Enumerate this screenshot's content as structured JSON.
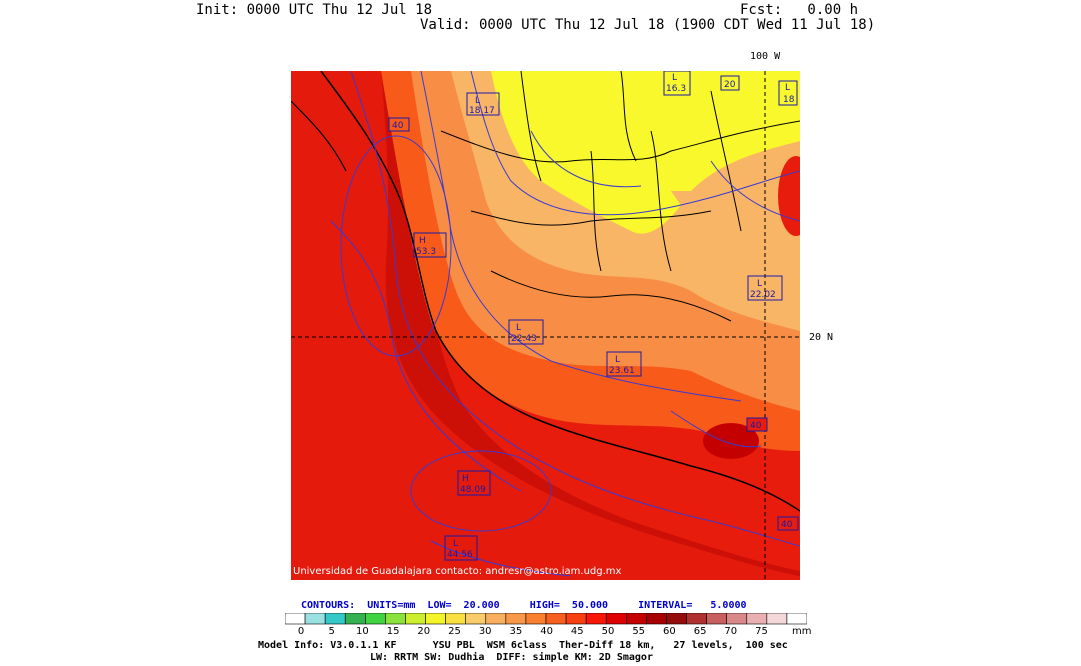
{
  "header": {
    "init": "Init: 0000 UTC Thu 12 Jul 18",
    "fcst": "Fcst:   0.00 h",
    "valid": "Valid: 0000 UTC Thu 12 Jul 18 (1900 CDT Wed 11 Jul 18)"
  },
  "map": {
    "lon_label": "100 W",
    "lat_label": "20 N",
    "credit": "Universidad de Guadalajara contacto: andresr@astro.iam.udg.mx",
    "pressure_labels": [
      {
        "kind": "L",
        "value": "18.17"
      },
      {
        "kind": "L",
        "value": "16.3"
      },
      {
        "kind": "",
        "value": "20"
      },
      {
        "kind": "L",
        "value": "18"
      },
      {
        "kind": "",
        "value": "40"
      },
      {
        "kind": "H",
        "value": "53.3"
      },
      {
        "kind": "L",
        "value": "22.02"
      },
      {
        "kind": "L",
        "value": "22.43"
      },
      {
        "kind": "L",
        "value": "23.61"
      },
      {
        "kind": "",
        "value": "40"
      },
      {
        "kind": "H",
        "value": "48.09"
      },
      {
        "kind": "",
        "value": "40"
      },
      {
        "kind": "L",
        "value": "44.56"
      }
    ]
  },
  "contours_line": "CONTOURS:  UNITS=mm  LOW=  20.000     HIGH=  50.000     INTERVAL=   5.0000",
  "colorbar": {
    "ticks": [
      "0",
      "5",
      "10",
      "15",
      "20",
      "25",
      "30",
      "35",
      "40",
      "45",
      "50",
      "55",
      "60",
      "65",
      "70",
      "75"
    ],
    "unit": "mm",
    "colors": [
      "#ffffff",
      "#9be1e1",
      "#35c8c8",
      "#34b150",
      "#42d342",
      "#8ce23c",
      "#ccee2e",
      "#f4f42a",
      "#f8e040",
      "#f9cc6a",
      "#f8b060",
      "#f89848",
      "#f88030",
      "#f86020",
      "#f84010",
      "#f81808",
      "#e00000",
      "#c40000",
      "#a80000",
      "#940c0c",
      "#b03030",
      "#c86060",
      "#d88888",
      "#e8b0b0",
      "#f4d8d8",
      "#ffffff"
    ]
  },
  "model": {
    "line1": "Model Info: V3.0.1.1 KF      YSU PBL  WSM 6class  Ther-Diff 18 km,   27 levels,  100 sec",
    "line2": "LW: RRTM SW: Dudhia  DIFF: simple KM: 2D Smagor"
  }
}
